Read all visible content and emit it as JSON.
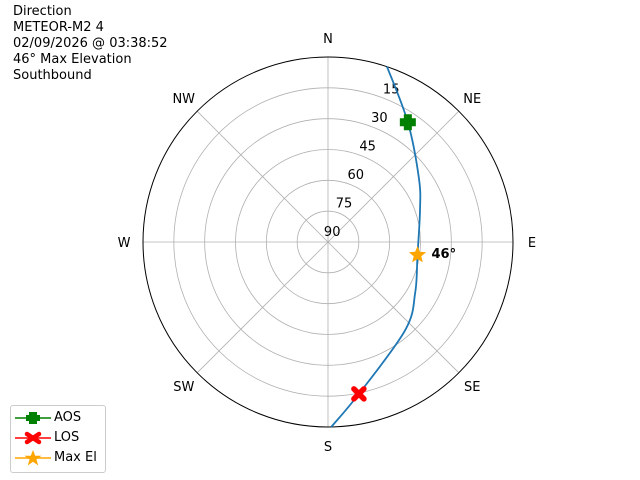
{
  "title_lines": [
    "Direction",
    "METEOR-M2 4",
    "02/09/2026 @ 03:38:52",
    "46° Max Elevation",
    "Southbound"
  ],
  "chart_data": {
    "type": "polar",
    "theta_direction": "clockwise",
    "theta_zero": "north",
    "direction_labels": [
      "N",
      "NE",
      "E",
      "SE",
      "S",
      "SW",
      "W",
      "NW"
    ],
    "radial_ticks": [
      "90",
      "75",
      "60",
      "45",
      "30",
      "15"
    ],
    "radial_axis": "elevation (90 at center, 0 at edge)",
    "rlim": [
      90,
      0
    ],
    "grid": true,
    "series": [
      {
        "type": "line",
        "color": "#1f77b4",
        "points": [
          {
            "az": 18.6,
            "el": 0
          },
          {
            "az": 33.7,
            "el": 20
          },
          {
            "az": 55,
            "el": 36
          },
          {
            "az": 70.8,
            "el": 42.6
          },
          {
            "az": 98.3,
            "el": 46
          },
          {
            "az": 120,
            "el": 41
          },
          {
            "az": 138.8,
            "el": 33
          },
          {
            "az": 168.5,
            "el": 14.6
          },
          {
            "az": 179,
            "el": 0
          }
        ]
      }
    ],
    "markers": [
      {
        "name": "AOS",
        "az": 33.7,
        "el": 20,
        "color": "#008000",
        "shape": "plus"
      },
      {
        "name": "LOS",
        "az": 168.5,
        "el": 14.6,
        "color": "#ff0000",
        "shape": "x"
      },
      {
        "name": "Max El",
        "az": 98.3,
        "el": 46,
        "color": "#ffa500",
        "shape": "star"
      }
    ],
    "annotations": [
      {
        "text": "46°",
        "az": 98.3,
        "el": 46
      }
    ],
    "legend": {
      "placement": "bottom-left",
      "entries": [
        "AOS",
        "LOS",
        "Max El"
      ]
    }
  }
}
